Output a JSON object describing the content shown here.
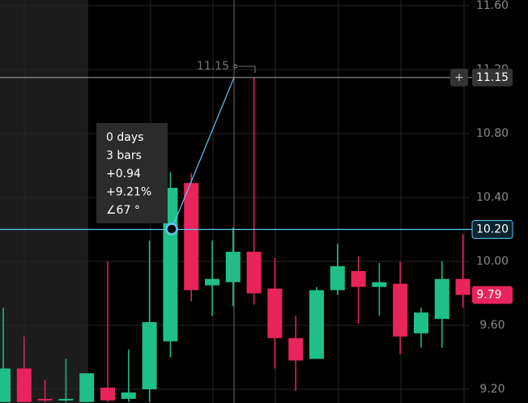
{
  "chart_data": {
    "type": "candlestick",
    "ylim": [
      9.114,
      11.635
    ],
    "yticks": [
      {
        "value": 11.6,
        "label": "11.60"
      },
      {
        "value": 11.2,
        "label": "11.20"
      },
      {
        "value": 10.8,
        "label": "10.80"
      },
      {
        "value": 10.4,
        "label": "10.40"
      },
      {
        "value": 10.0,
        "label": "10.00"
      },
      {
        "value": 9.6,
        "label": "9.60"
      },
      {
        "value": 9.2,
        "label": "9.20"
      }
    ],
    "grid": true,
    "up_color": "#1fbf8a",
    "down_color": "#e8245a",
    "open": [
      9.12,
      9.33,
      9.14,
      9.13,
      9.12,
      9.21,
      9.14,
      9.2,
      9.5,
      10.49,
      9.85,
      9.87,
      10.06,
      9.83,
      9.52,
      9.39,
      9.82,
      9.94,
      9.84,
      9.86,
      9.55,
      9.64,
      9.89
    ],
    "high": [
      9.71,
      9.53,
      9.26,
      9.39,
      9.3,
      10.0,
      9.45,
      10.13,
      10.56,
      10.55,
      10.13,
      10.21,
      11.15,
      10.02,
      9.66,
      9.84,
      10.11,
      10.03,
      9.99,
      10.0,
      9.71,
      10.0,
      10.17
    ],
    "low": [
      9.12,
      9.12,
      9.12,
      9.12,
      9.12,
      9.12,
      9.12,
      9.12,
      9.4,
      9.75,
      9.66,
      9.72,
      9.73,
      9.33,
      9.19,
      9.39,
      9.79,
      9.61,
      9.66,
      9.42,
      9.46,
      9.46,
      9.71
    ],
    "close": [
      9.33,
      9.12,
      9.13,
      9.14,
      9.3,
      9.13,
      9.18,
      9.62,
      10.46,
      9.82,
      9.89,
      10.06,
      9.8,
      9.52,
      9.38,
      9.82,
      9.97,
      9.84,
      9.87,
      9.53,
      9.68,
      9.89,
      9.79
    ],
    "price_line": {
      "value": 10.2,
      "label": "10.20",
      "color": "#5cc8f2"
    },
    "crosshair": {
      "value": 11.15,
      "label": "11.15"
    },
    "last_price": {
      "value": 9.79,
      "label": "9.79"
    },
    "measure": {
      "label": "11.15",
      "lines": [
        "0 days",
        "3 bars",
        "+0.94",
        "+9.21%",
        "∠67 °"
      ]
    }
  }
}
